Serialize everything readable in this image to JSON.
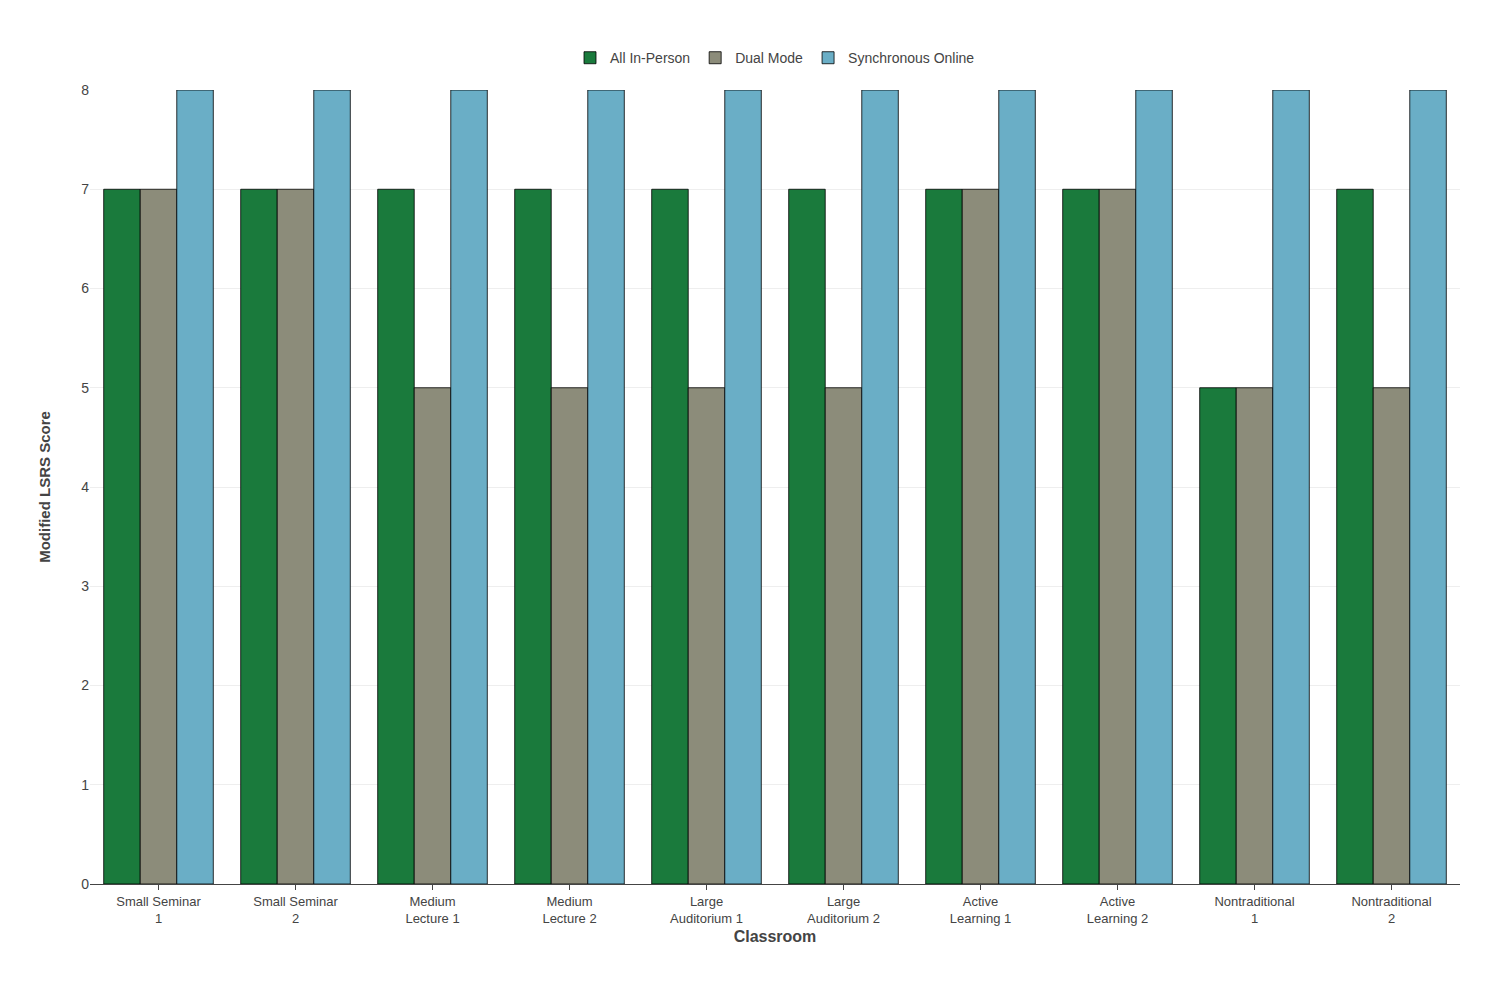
{
  "chart_data": {
    "type": "bar",
    "categories": [
      "Small Seminar\n1",
      "Small Seminar\n2",
      "Medium\nLecture 1",
      "Medium\nLecture 2",
      "Large\nAuditorium 1",
      "Large\nAuditorium 2",
      "Active\nLearning 1",
      "Active\nLearning 2",
      "Nontraditional\n1",
      "Nontraditional\n2"
    ],
    "series": [
      {
        "name": "All In-Person",
        "color": "#1a7a3c",
        "values": [
          7,
          7,
          7,
          7,
          7,
          7,
          7,
          7,
          5,
          7
        ]
      },
      {
        "name": "Dual Mode",
        "color": "#8c8c7a",
        "values": [
          7,
          7,
          5,
          5,
          5,
          5,
          7,
          7,
          5,
          5
        ]
      },
      {
        "name": "Synchronous Online",
        "color": "#6aaec6",
        "values": [
          8,
          8,
          8,
          8,
          8,
          8,
          8,
          8,
          8,
          8
        ]
      }
    ],
    "xlabel": "Classroom",
    "ylabel": "Modified LSRS Score",
    "ylim": [
      0,
      8
    ],
    "yticks": [
      0,
      1,
      2,
      3,
      4,
      5,
      6,
      7,
      8
    ],
    "grid": true,
    "legend": "top"
  }
}
